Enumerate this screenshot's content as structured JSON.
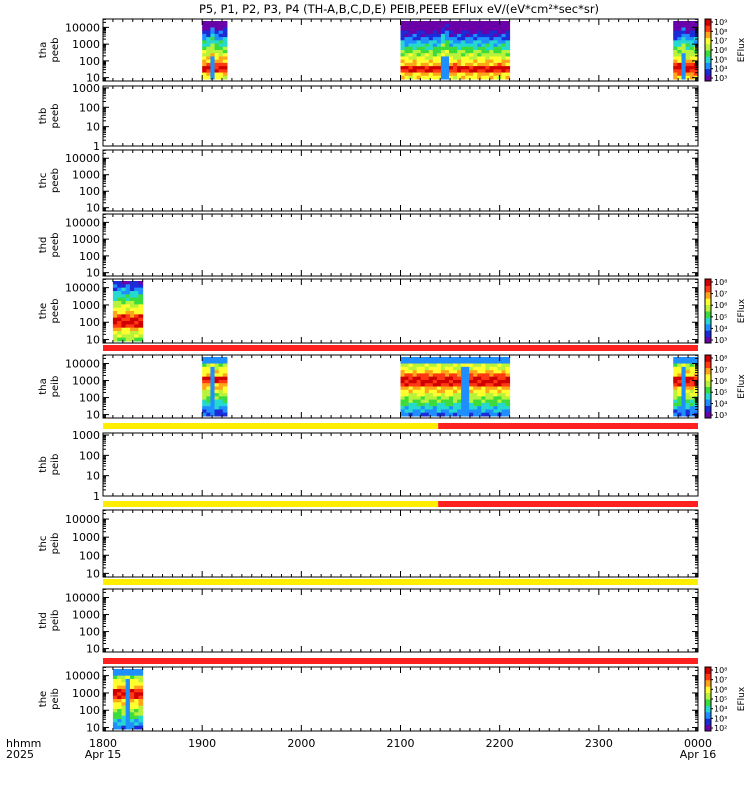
{
  "title": "P5, P1, P2, P3, P4 (TH-A,B,C,D,E) PEIB,PEEB EFlux eV/(eV*cm²*sec*sr)",
  "chart_data": {
    "type": "heatmap",
    "title": "P5, P1, P2, P3, P4 (TH-A,B,C,D,E) PEIB,PEEB EFlux eV/(eV*cm²*sec*sr)",
    "x_axis": {
      "label_line1": "hhmm",
      "label_line2": "2025",
      "range_hhmm": [
        1800,
        2400
      ],
      "ticks": [
        {
          "value": 1800,
          "label": "1800",
          "sub": "Apr 15"
        },
        {
          "value": 1900,
          "label": "1900",
          "sub": ""
        },
        {
          "value": 2000,
          "label": "2000",
          "sub": ""
        },
        {
          "value": 2100,
          "label": "2100",
          "sub": ""
        },
        {
          "value": 2200,
          "label": "2200",
          "sub": ""
        },
        {
          "value": 2300,
          "label": "2300",
          "sub": ""
        },
        {
          "value": 2400,
          "label": "0000",
          "sub": "Apr 16"
        }
      ]
    },
    "colorscale": [
      "#6a00a8",
      "#1c2bd8",
      "#1f8fff",
      "#26d9d0",
      "#3ddc3d",
      "#b8f23a",
      "#ffff2e",
      "#ffa51a",
      "#ff3a12",
      "#d00000"
    ],
    "mode_bar_colors": {
      "red": "#ff2020",
      "yellow": "#ffee00"
    },
    "panels": [
      {
        "label_line1": "tha",
        "label_line2": "peeb",
        "yticks": [
          "10",
          "100",
          "1000",
          "10000"
        ],
        "ylim_log": [
          0.8,
          4.5
        ],
        "mode_bar": [],
        "intervals": [
          {
            "start": 1900,
            "end": 1925,
            "peak": 1.4,
            "hot_band": [
              1.3,
              1.9
            ],
            "spike_at": 1910
          },
          {
            "start": 2100,
            "end": 2210,
            "peak": 1.5,
            "hot_band": [
              1.2,
              1.7
            ],
            "spike_at": 2145
          },
          {
            "start": 2375,
            "end": 2400,
            "peak": 1.6,
            "hot_band": [
              1.1,
              1.8
            ],
            "spike_at": 2385
          }
        ],
        "colorbar": {
          "label": "EFlux",
          "ticks": [
            "10³",
            "10⁴",
            "10⁵",
            "10⁶",
            "10⁷",
            "10⁸",
            "10⁹"
          ]
        }
      },
      {
        "label_line1": "thb",
        "label_line2": "peeb",
        "yticks": [
          "1",
          "10",
          "100",
          "1000"
        ],
        "ylim_log": [
          0,
          3.1
        ],
        "mode_bar": [],
        "intervals": [],
        "colorbar": null
      },
      {
        "label_line1": "thc",
        "label_line2": "peeb",
        "yticks": [
          "10",
          "100",
          "1000",
          "10000"
        ],
        "ylim_log": [
          0.8,
          4.5
        ],
        "mode_bar": [],
        "intervals": [],
        "colorbar": null
      },
      {
        "label_line1": "thd",
        "label_line2": "peeb",
        "yticks": [
          "10",
          "100",
          "1000",
          "10000"
        ],
        "ylim_log": [
          0.8,
          4.5
        ],
        "mode_bar": [],
        "intervals": [],
        "colorbar": null
      },
      {
        "label_line1": "the",
        "label_line2": "peeb",
        "yticks": [
          "10",
          "100",
          "1000",
          "10000"
        ],
        "ylim_log": [
          0.8,
          4.5
        ],
        "mode_bar": [],
        "intervals": [
          {
            "start": 1810,
            "end": 1840,
            "peak": 2.0,
            "hot_band": [
              1.7,
              2.4
            ],
            "spike_at": null
          }
        ],
        "colorbar": {
          "label": "EFlux",
          "ticks": [
            "10³",
            "10⁴",
            "10⁵",
            "10⁶",
            "10⁷",
            "10⁸"
          ]
        }
      },
      {
        "label_line1": "tha",
        "label_line2": "peib",
        "yticks": [
          "10",
          "100",
          "1000",
          "10000"
        ],
        "ylim_log": [
          0.8,
          4.5
        ],
        "mode_bar": [
          {
            "start": 1800,
            "end": 2400,
            "color": "red"
          }
        ],
        "intervals": [
          {
            "start": 1900,
            "end": 1925,
            "peak": 3.1,
            "hot_band": [
              2.8,
              3.3
            ],
            "spike_at": 1910
          },
          {
            "start": 2100,
            "end": 2210,
            "peak": 3.0,
            "hot_band": [
              2.6,
              3.4
            ],
            "spike_at": 2165
          },
          {
            "start": 2375,
            "end": 2400,
            "peak": 3.0,
            "hot_band": [
              2.7,
              3.3
            ],
            "spike_at": 2385
          }
        ],
        "colorbar": {
          "label": "EFlux",
          "ticks": [
            "10³",
            "10⁴",
            "10⁵",
            "10⁶",
            "10⁷",
            "10⁸"
          ]
        }
      },
      {
        "label_line1": "thb",
        "label_line2": "peib",
        "yticks": [
          "1",
          "10",
          "100",
          "1000"
        ],
        "ylim_log": [
          0,
          3.1
        ],
        "mode_bar": [
          {
            "start": 1800,
            "end": 2138,
            "color": "yellow"
          },
          {
            "start": 2138,
            "end": 2400,
            "color": "red"
          }
        ],
        "intervals": [],
        "colorbar": null
      },
      {
        "label_line1": "thc",
        "label_line2": "peib",
        "yticks": [
          "10",
          "100",
          "1000",
          "10000"
        ],
        "ylim_log": [
          0.8,
          4.5
        ],
        "mode_bar": [
          {
            "start": 1800,
            "end": 2138,
            "color": "yellow"
          },
          {
            "start": 2138,
            "end": 2400,
            "color": "red"
          }
        ],
        "intervals": [],
        "colorbar": null
      },
      {
        "label_line1": "thd",
        "label_line2": "peib",
        "yticks": [
          "10",
          "100",
          "1000",
          "10000"
        ],
        "ylim_log": [
          0.8,
          4.5
        ],
        "mode_bar": [
          {
            "start": 1800,
            "end": 2400,
            "color": "yellow"
          }
        ],
        "intervals": [],
        "colorbar": null
      },
      {
        "label_line1": "the",
        "label_line2": "peib",
        "yticks": [
          "10",
          "100",
          "1000",
          "10000"
        ],
        "ylim_log": [
          0.8,
          4.5
        ],
        "mode_bar": [
          {
            "start": 1800,
            "end": 2400,
            "color": "red"
          }
        ],
        "intervals": [
          {
            "start": 1810,
            "end": 1840,
            "peak": 3.0,
            "hot_band": [
              2.6,
              3.3
            ],
            "spike_at": 1825
          }
        ],
        "colorbar": {
          "label": "EFlux",
          "ticks": [
            "10²",
            "10³",
            "10⁴",
            "10⁵",
            "10⁶",
            "10⁷",
            "10⁸"
          ]
        }
      }
    ]
  }
}
